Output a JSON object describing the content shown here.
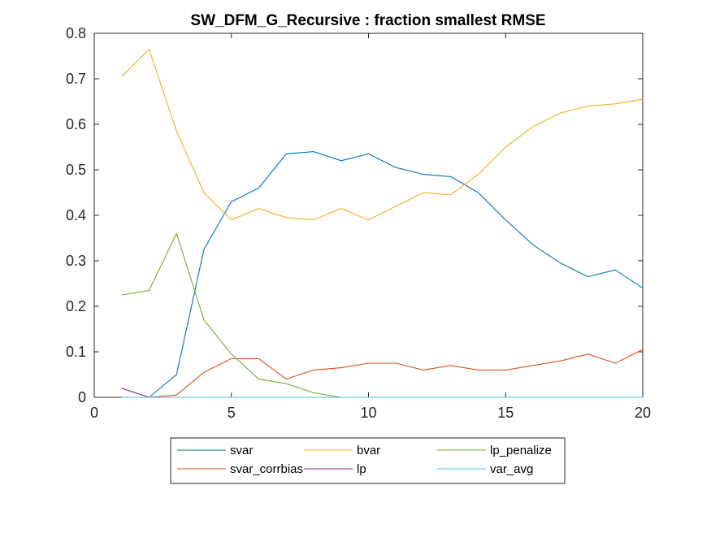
{
  "chart_data": {
    "type": "line",
    "title": "SW_DFM_G_Recursive : fraction smallest RMSE",
    "xlabel": "",
    "ylabel": "",
    "xlim": [
      0,
      20
    ],
    "ylim": [
      0,
      0.8
    ],
    "xticks": [
      0,
      5,
      10,
      15,
      20
    ],
    "xtick_labels": [
      "0",
      "5",
      "10",
      "15",
      "20"
    ],
    "yticks": [
      0,
      0.1,
      0.2,
      0.3,
      0.4,
      0.5,
      0.6,
      0.7,
      0.8
    ],
    "ytick_labels": [
      "0",
      "0.1",
      "0.2",
      "0.3",
      "0.4",
      "0.5",
      "0.6",
      "0.7",
      "0.8"
    ],
    "x": [
      1,
      2,
      3,
      4,
      5,
      6,
      7,
      8,
      9,
      10,
      11,
      12,
      13,
      14,
      15,
      16,
      17,
      18,
      19,
      20
    ],
    "legend_position": "bottom-outside",
    "series": [
      {
        "name": "svar",
        "color": "#0072BD",
        "values": [
          0,
          0,
          0.05,
          0.325,
          0.43,
          0.46,
          0.535,
          0.54,
          0.52,
          0.535,
          0.505,
          0.49,
          0.485,
          0.45,
          0.39,
          0.335,
          0.295,
          0.265,
          0.28,
          0.24
        ]
      },
      {
        "name": "svar_corrbias",
        "color": "#D95319",
        "values": [
          0,
          0,
          0.005,
          0.055,
          0.085,
          0.085,
          0.04,
          0.06,
          0.065,
          0.075,
          0.075,
          0.06,
          0.07,
          0.06,
          0.06,
          0.07,
          0.08,
          0.095,
          0.075,
          0.105
        ]
      },
      {
        "name": "bvar",
        "color": "#EDB120",
        "values": [
          0.705,
          0.765,
          0.585,
          0.45,
          0.39,
          0.415,
          0.395,
          0.39,
          0.415,
          0.39,
          0.42,
          0.45,
          0.445,
          0.49,
          0.55,
          0.595,
          0.625,
          0.64,
          0.645,
          0.655
        ]
      },
      {
        "name": "lp",
        "color": "#7E2F8E",
        "values": [
          0.02,
          0,
          0,
          0,
          0,
          0,
          0,
          0,
          0,
          0,
          0,
          0,
          0,
          0,
          0,
          0,
          0,
          0,
          0,
          0
        ]
      },
      {
        "name": "lp_penalize",
        "color": "#77AC30",
        "values": [
          0.225,
          0.235,
          0.36,
          0.17,
          0.095,
          0.04,
          0.03,
          0.01,
          0,
          0,
          0,
          0,
          0,
          0,
          0,
          0,
          0,
          0,
          0,
          0
        ]
      },
      {
        "name": "var_avg",
        "color": "#4DBEEE",
        "values": [
          0,
          0,
          0,
          0,
          0,
          0,
          0,
          0,
          0,
          0,
          0,
          0,
          0,
          0,
          0,
          0,
          0,
          0,
          0,
          0
        ]
      }
    ],
    "legend_order": [
      "svar",
      "bvar",
      "lp_penalize",
      "svar_corrbias",
      "lp",
      "var_avg"
    ],
    "legend_color_overrides": {
      "svar": "#007F6A"
    }
  }
}
